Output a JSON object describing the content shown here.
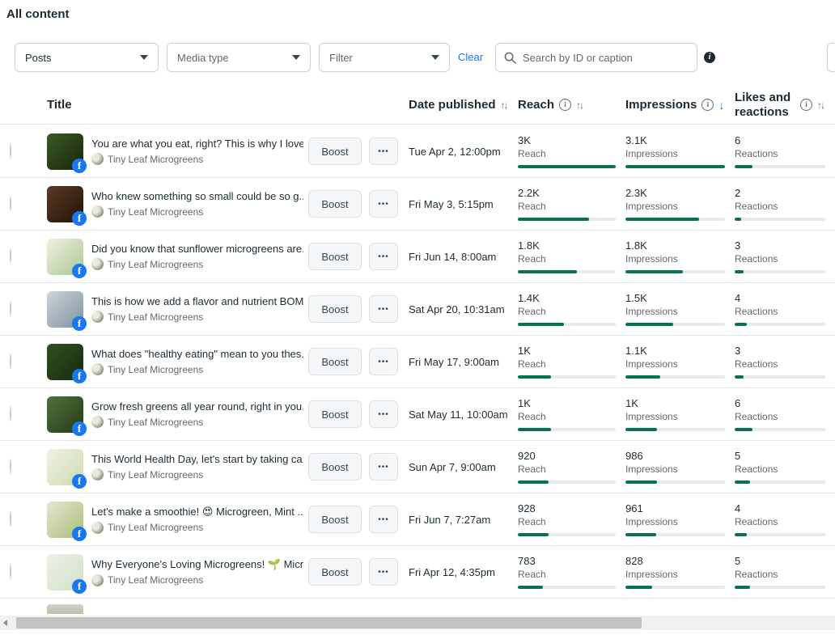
{
  "page": {
    "title": "All content"
  },
  "filters": {
    "posts_dropdown": "Posts",
    "media_type_dropdown": "Media type",
    "filter_dropdown": "Filter",
    "clear_label": "Clear",
    "search_placeholder": "Search by ID or caption"
  },
  "colors": {
    "bar_green": "#077152",
    "accent_blue": "#1877f2",
    "facebook_blue": "#1877f2"
  },
  "table": {
    "columns": {
      "title": "Title",
      "date": "Date published",
      "reach": "Reach",
      "impressions": "Impressions",
      "likes_line1": "Likes and",
      "likes_line2": "reactions"
    },
    "sort_glyph": "↑↓",
    "sort_desc_glyph": "↓",
    "info_glyph": "i",
    "boost_label": "Boost",
    "more_label": "•••",
    "facebook_glyph": "f",
    "reach_label": "Reach",
    "impressions_label": "Impressions",
    "reactions_label": "Reactions",
    "page_name": "Tiny Leaf Microgreens",
    "rows": [
      {
        "title": "You are what you eat, right? This is why I love...",
        "date": "Tue Apr 2, 12:00pm",
        "reach": "3K",
        "reach_pct": 100,
        "impressions": "3.1K",
        "impressions_pct": 100,
        "reactions": "6",
        "reactions_pct": 20,
        "thumb": [
          "#3a5a23",
          "#16260e"
        ]
      },
      {
        "title": "Who knew something so small could be so g...",
        "date": "Fri May 3, 5:15pm",
        "reach": "2.2K",
        "reach_pct": 73,
        "impressions": "2.3K",
        "impressions_pct": 74,
        "reactions": "2",
        "reactions_pct": 7,
        "thumb": [
          "#5b3a22",
          "#231208"
        ]
      },
      {
        "title": "Did you know that sunflower microgreens are...",
        "date": "Fri Jun 14, 8:00am",
        "reach": "1.8K",
        "reach_pct": 60,
        "impressions": "1.8K",
        "impressions_pct": 58,
        "reactions": "3",
        "reactions_pct": 10,
        "thumb": [
          "#f2efe3",
          "#aac98f"
        ]
      },
      {
        "title": "This is how we add a flavor and nutrient BOM...",
        "date": "Sat Apr 20, 10:31am",
        "reach": "1.4K",
        "reach_pct": 47,
        "impressions": "1.5K",
        "impressions_pct": 48,
        "reactions": "4",
        "reactions_pct": 13,
        "thumb": [
          "#cdd6db",
          "#7e929e"
        ]
      },
      {
        "title": "What does \"healthy eating\" mean to you thes...",
        "date": "Fri May 17, 9:00am",
        "reach": "1K",
        "reach_pct": 34,
        "impressions": "1.1K",
        "impressions_pct": 35,
        "reactions": "3",
        "reactions_pct": 10,
        "thumb": [
          "#31511f",
          "#17290f"
        ]
      },
      {
        "title": "Grow fresh greens all year round, right in you...",
        "date": "Sat May 11, 10:00am",
        "reach": "1K",
        "reach_pct": 34,
        "impressions": "1K",
        "impressions_pct": 32,
        "reactions": "6",
        "reactions_pct": 20,
        "thumb": [
          "#51713a",
          "#243a14"
        ]
      },
      {
        "title": "This World Health Day, let's start by taking ca...",
        "date": "Sun Apr 7, 9:00am",
        "reach": "920",
        "reach_pct": 31,
        "impressions": "986",
        "impressions_pct": 32,
        "reactions": "5",
        "reactions_pct": 17,
        "thumb": [
          "#f4f1e4",
          "#c9dcae"
        ]
      },
      {
        "title": "Let's make a smoothie! 😍 Microgreen, Mint ...",
        "date": "Fri Jun 7, 7:27am",
        "reach": "928",
        "reach_pct": 31,
        "impressions": "961",
        "impressions_pct": 31,
        "reactions": "4",
        "reactions_pct": 13,
        "thumb": [
          "#e8e4d2",
          "#a9c077"
        ]
      },
      {
        "title": "Why Everyone's Loving Microgreens! 🌱 Micr...",
        "date": "Fri Apr 12, 4:35pm",
        "reach": "783",
        "reach_pct": 26,
        "impressions": "828",
        "impressions_pct": 27,
        "reactions": "5",
        "reactions_pct": 17,
        "thumb": [
          "#f0f0ea",
          "#cfe0c4"
        ]
      }
    ]
  }
}
